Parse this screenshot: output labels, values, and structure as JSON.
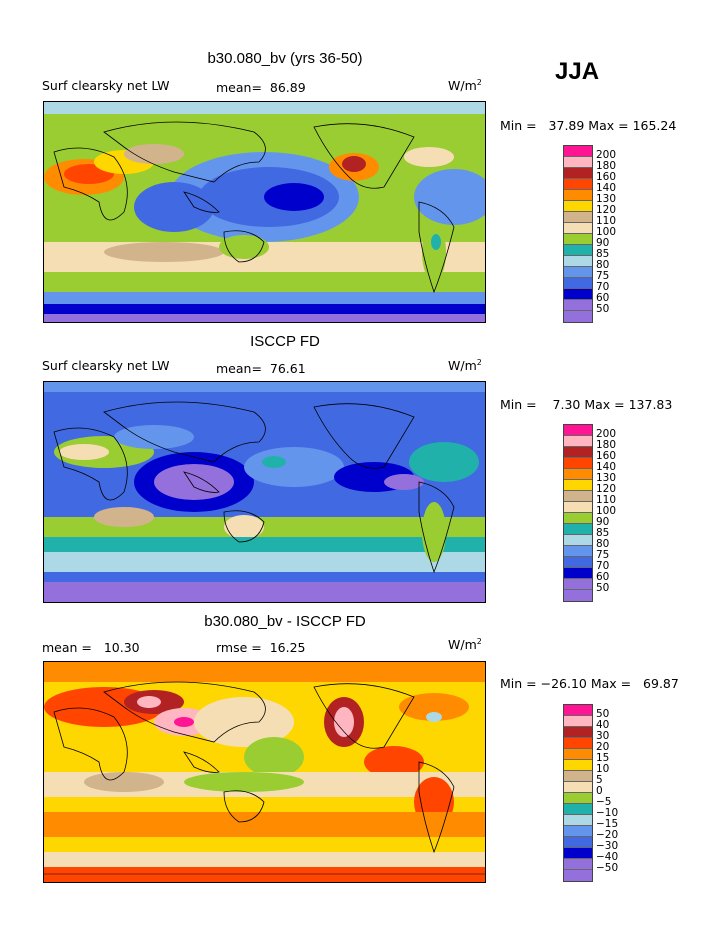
{
  "season": "JJA",
  "unit_base": "W/m",
  "unit_exp": "2",
  "panels": [
    {
      "title": "b30.080_bv (yrs 36-50)",
      "left_label": "Surf clearsky net LW",
      "stat_label": "mean=",
      "stat_value": "86.89",
      "minmax": "Min =   37.89 Max = 165.24",
      "colorbar": {
        "labels": [
          "200",
          "180",
          "160",
          "140",
          "130",
          "120",
          "110",
          "100",
          "90",
          "85",
          "80",
          "75",
          "70",
          "60",
          "50"
        ],
        "colors": [
          "#ff1493",
          "#ffb6c1",
          "#b22222",
          "#ff4500",
          "#ff8c00",
          "#ffd700",
          "#d2b48c",
          "#f5deb3",
          "#9acd32",
          "#20b2aa",
          "#add8e6",
          "#6495ed",
          "#4169e1",
          "#0000cd",
          "#9370db"
        ]
      }
    },
    {
      "title": "ISCCP FD",
      "left_label": "Surf clearsky net LW",
      "stat_label": "mean=",
      "stat_value": "76.61",
      "minmax": "Min =    7.30 Max = 137.83",
      "colorbar": {
        "labels": [
          "200",
          "180",
          "160",
          "140",
          "130",
          "120",
          "110",
          "100",
          "90",
          "85",
          "80",
          "75",
          "70",
          "60",
          "50"
        ],
        "colors": [
          "#ff1493",
          "#ffb6c1",
          "#b22222",
          "#ff4500",
          "#ff8c00",
          "#ffd700",
          "#d2b48c",
          "#f5deb3",
          "#9acd32",
          "#20b2aa",
          "#add8e6",
          "#6495ed",
          "#4169e1",
          "#0000cd",
          "#9370db"
        ]
      }
    },
    {
      "title": "b30.080_bv - ISCCP FD",
      "left_label": "mean =   10.30",
      "stat_label": "rmse =",
      "stat_value": "16.25",
      "minmax": "Min = −26.10 Max =   69.87",
      "colorbar": {
        "labels": [
          "50",
          "40",
          "30",
          "20",
          "15",
          "10",
          "5",
          "0",
          "−5",
          "−10",
          "−15",
          "−20",
          "−30",
          "−40",
          "−50"
        ],
        "colors": [
          "#ff1493",
          "#ffb6c1",
          "#b22222",
          "#ff4500",
          "#ff8c00",
          "#ffd700",
          "#d2b48c",
          "#f5deb3",
          "#9acd32",
          "#20b2aa",
          "#add8e6",
          "#6495ed",
          "#4169e1",
          "#0000cd",
          "#9370db"
        ]
      }
    }
  ]
}
